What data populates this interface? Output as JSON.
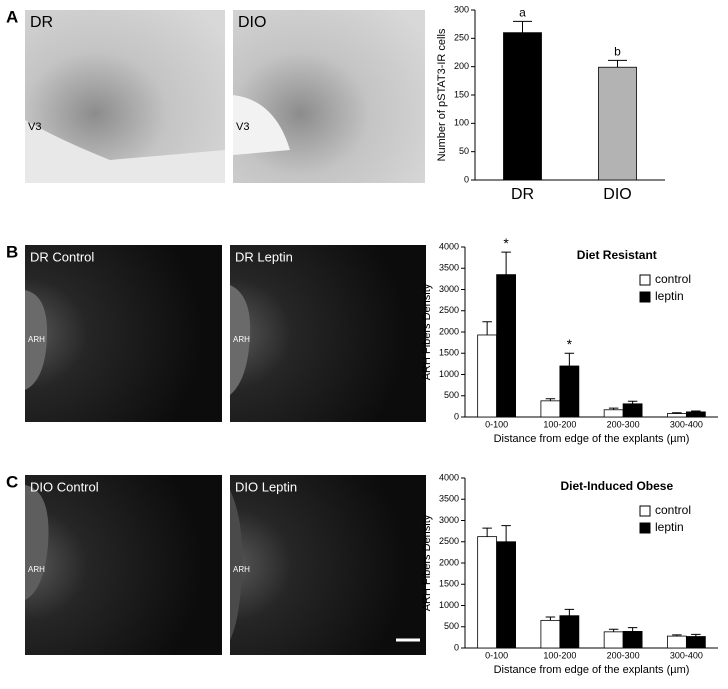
{
  "panels": [
    {
      "letter": "A",
      "images": [
        {
          "label": "DR",
          "sublabel": "V3"
        },
        {
          "label": "DIO",
          "sublabel": "V3"
        }
      ]
    },
    {
      "letter": "B",
      "images": [
        {
          "label": "DR Control",
          "sublabel": "ARH"
        },
        {
          "label": "DR Leptin",
          "sublabel": "ARH"
        }
      ]
    },
    {
      "letter": "C",
      "images": [
        {
          "label": "DIO Control",
          "sublabel": "ARH"
        },
        {
          "label": "DIO Leptin",
          "sublabel": "ARH"
        }
      ]
    }
  ],
  "chart_data": [
    {
      "type": "bar",
      "ylabel": "Number of pSTAT3-IR cells",
      "categories": [
        "DR",
        "DIO"
      ],
      "values": [
        260,
        199
      ],
      "errors": [
        20,
        12
      ],
      "colors": [
        "#000000",
        "#b3b3b3"
      ],
      "value_annotations": [
        "a",
        "b"
      ],
      "ylim": [
        0,
        300
      ],
      "yticks": [
        0,
        50,
        100,
        150,
        200,
        250,
        300
      ]
    },
    {
      "type": "bar",
      "title": "Diet Resistant",
      "ylabel": "ARH Fibers Density",
      "xlabel": "Distance from edge of the explants (µm)",
      "categories": [
        "0-100",
        "100-200",
        "200-300",
        "300-400"
      ],
      "series": [
        {
          "name": "control",
          "color": "#ffffff",
          "values": [
            1930,
            380,
            170,
            80
          ],
          "errors": [
            310,
            50,
            40,
            20
          ]
        },
        {
          "name": "leptin",
          "color": "#000000",
          "values": [
            3350,
            1200,
            310,
            120
          ],
          "errors": [
            530,
            300,
            60,
            20
          ],
          "value_annotations": [
            "*",
            "*",
            null,
            null
          ]
        }
      ],
      "ylim": [
        0,
        4000
      ],
      "yticks": [
        0,
        500,
        1000,
        1500,
        2000,
        2500,
        3000,
        3500,
        4000
      ],
      "legend": "upper right"
    },
    {
      "type": "bar",
      "title": "Diet-Induced Obese",
      "ylabel": "ARH Fibers Density",
      "xlabel": "Distance from edge of the explants (µm)",
      "categories": [
        "0-100",
        "100-200",
        "200-300",
        "300-400"
      ],
      "series": [
        {
          "name": "control",
          "color": "#ffffff",
          "values": [
            2620,
            650,
            380,
            280
          ],
          "errors": [
            200,
            80,
            60,
            30
          ]
        },
        {
          "name": "leptin",
          "color": "#000000",
          "values": [
            2500,
            760,
            390,
            270
          ],
          "errors": [
            380,
            150,
            90,
            50
          ]
        }
      ],
      "ylim": [
        0,
        4000
      ],
      "yticks": [
        0,
        500,
        1000,
        1500,
        2000,
        2500,
        3000,
        3500,
        4000
      ],
      "legend": "upper right"
    }
  ]
}
